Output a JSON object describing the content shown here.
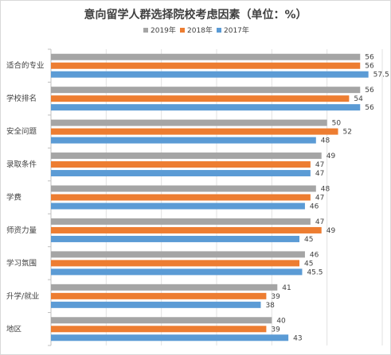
{
  "chart_data": {
    "type": "bar",
    "orientation": "horizontal",
    "title": "意向留学人群选择院校考虑因素（单位：%）",
    "categories": [
      "适合的专业",
      "学校排名",
      "安全问题",
      "录取条件",
      "学费",
      "师资力量",
      "学习氛围",
      "升学/就业",
      "地区"
    ],
    "series": [
      {
        "name": "2019年",
        "color": "#a5a5a5",
        "values": [
          56,
          56,
          50,
          49,
          48,
          47,
          46,
          41,
          40
        ]
      },
      {
        "name": "2018年",
        "color": "#ed7d31",
        "values": [
          56,
          54,
          52,
          47,
          47,
          49,
          45,
          39,
          39
        ]
      },
      {
        "name": "2017年",
        "color": "#5b9bd5",
        "values": [
          57.5,
          56,
          48,
          47,
          46,
          45,
          45.5,
          38,
          43
        ]
      }
    ],
    "xlim": [
      0,
      60
    ],
    "grid": true,
    "legend": "top"
  }
}
